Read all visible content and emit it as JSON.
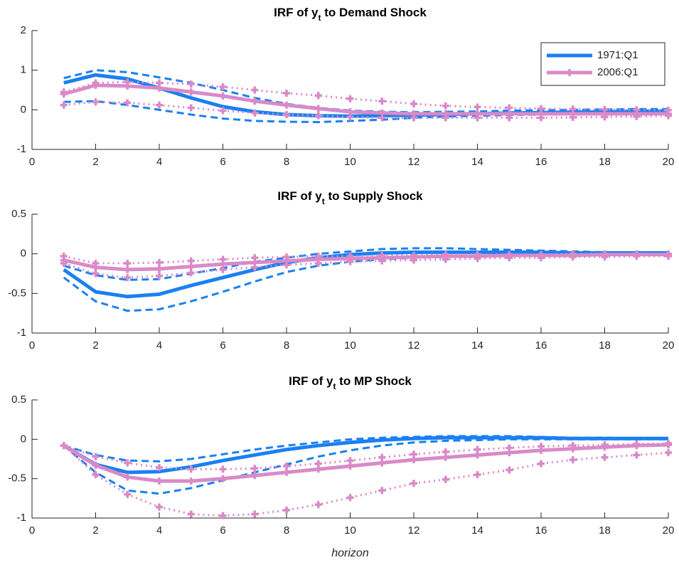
{
  "chart_data": [
    {
      "type": "line",
      "title": [
        "IRF of y",
        "t",
        " to Demand Shock"
      ],
      "x": [
        1,
        2,
        3,
        4,
        5,
        6,
        7,
        8,
        9,
        10,
        11,
        12,
        13,
        14,
        15,
        16,
        17,
        18,
        19,
        20
      ],
      "xlim": [
        0,
        20
      ],
      "xticks": [
        0,
        2,
        4,
        6,
        8,
        10,
        12,
        14,
        16,
        18,
        20
      ],
      "ylim": [
        -1,
        2
      ],
      "yticks": [
        -1,
        0,
        1,
        2
      ],
      "legend": "northeast",
      "series": [
        {
          "name": "1971:Q1",
          "color": "#1a80f2",
          "band_style": "dashed",
          "marker": "none",
          "values": [
            0.68,
            0.88,
            0.78,
            0.55,
            0.3,
            0.08,
            -0.05,
            -0.12,
            -0.15,
            -0.16,
            -0.15,
            -0.13,
            -0.12,
            -0.1,
            -0.08,
            -0.07,
            -0.06,
            -0.05,
            -0.04,
            -0.03
          ],
          "upper": [
            0.8,
            1.0,
            0.95,
            0.82,
            0.68,
            0.5,
            0.3,
            0.15,
            0.05,
            -0.02,
            -0.05,
            -0.06,
            -0.05,
            -0.04,
            -0.02,
            -0.01,
            0,
            0.01,
            0.02,
            0.02
          ],
          "lower": [
            0.2,
            0.22,
            0.12,
            0,
            -0.12,
            -0.22,
            -0.28,
            -0.3,
            -0.31,
            -0.28,
            -0.25,
            -0.2,
            -0.17,
            -0.15,
            -0.13,
            -0.12,
            -0.11,
            -0.1,
            -0.09,
            -0.08
          ]
        },
        {
          "name": "2006:Q1",
          "color": "#d98ac8",
          "band_style": "dotted",
          "marker": "+",
          "values": [
            0.4,
            0.62,
            0.6,
            0.55,
            0.45,
            0.35,
            0.22,
            0.12,
            0.03,
            -0.05,
            -0.08,
            -0.1,
            -0.1,
            -0.1,
            -0.1,
            -0.1,
            -0.1,
            -0.1,
            -0.1,
            -0.1
          ],
          "upper": [
            0.45,
            0.68,
            0.7,
            0.68,
            0.65,
            0.58,
            0.5,
            0.42,
            0.36,
            0.28,
            0.22,
            0.15,
            0.1,
            0.07,
            0.05,
            0.03,
            0.02,
            0.01,
            0,
            -0.01
          ],
          "lower": [
            0.12,
            0.2,
            0.18,
            0.12,
            0.05,
            -0.02,
            -0.08,
            -0.12,
            -0.15,
            -0.18,
            -0.2,
            -0.2,
            -0.2,
            -0.2,
            -0.2,
            -0.2,
            -0.19,
            -0.18,
            -0.17,
            -0.15
          ]
        }
      ]
    },
    {
      "type": "line",
      "title": [
        "IRF of y",
        "t",
        " to Supply Shock"
      ],
      "x": [
        1,
        2,
        3,
        4,
        5,
        6,
        7,
        8,
        9,
        10,
        11,
        12,
        13,
        14,
        15,
        16,
        17,
        18,
        19,
        20
      ],
      "xlim": [
        0,
        20
      ],
      "xticks": [
        0,
        2,
        4,
        6,
        8,
        10,
        12,
        14,
        16,
        18,
        20
      ],
      "ylim": [
        -1,
        0.5
      ],
      "yticks": [
        -1,
        -0.5,
        0,
        0.5
      ],
      "series": [
        {
          "color": "#1a80f2",
          "band_style": "dashed",
          "marker": "none",
          "values": [
            -0.2,
            -0.48,
            -0.54,
            -0.51,
            -0.4,
            -0.3,
            -0.2,
            -0.11,
            -0.05,
            -0.01,
            0.01,
            0.02,
            0.02,
            0.02,
            0.02,
            0.02,
            0.01,
            0.01,
            0.01,
            0.01
          ],
          "upper": [
            -0.15,
            -0.27,
            -0.33,
            -0.32,
            -0.25,
            -0.18,
            -0.1,
            -0.05,
            0,
            0.03,
            0.06,
            0.07,
            0.07,
            0.06,
            0.05,
            0.04,
            0.03,
            0.02,
            0.02,
            0.01
          ],
          "lower": [
            -0.3,
            -0.6,
            -0.72,
            -0.7,
            -0.6,
            -0.48,
            -0.35,
            -0.23,
            -0.15,
            -0.1,
            -0.07,
            -0.05,
            -0.04,
            -0.03,
            -0.02,
            -0.02,
            -0.01,
            -0.01,
            -0.01,
            -0.01
          ]
        },
        {
          "color": "#d98ac8",
          "band_style": "dotted",
          "marker": "+",
          "values": [
            -0.08,
            -0.17,
            -0.2,
            -0.19,
            -0.16,
            -0.13,
            -0.11,
            -0.09,
            -0.07,
            -0.06,
            -0.05,
            -0.04,
            -0.03,
            -0.03,
            -0.02,
            -0.02,
            -0.02,
            -0.01,
            -0.01,
            -0.01
          ],
          "upper": [
            -0.03,
            -0.12,
            -0.12,
            -0.11,
            -0.09,
            -0.07,
            -0.05,
            -0.04,
            -0.03,
            -0.03,
            -0.02,
            -0.02,
            -0.01,
            -0.01,
            -0.01,
            -0.01,
            0,
            0,
            0,
            0
          ],
          "lower": [
            -0.12,
            -0.25,
            -0.3,
            -0.28,
            -0.24,
            -0.2,
            -0.17,
            -0.14,
            -0.12,
            -0.1,
            -0.09,
            -0.08,
            -0.07,
            -0.06,
            -0.05,
            -0.05,
            -0.04,
            -0.04,
            -0.03,
            -0.03
          ]
        }
      ]
    },
    {
      "type": "line",
      "title": [
        "IRF of y",
        "t",
        " to MP Shock"
      ],
      "xlabel": "horizon",
      "x": [
        1,
        2,
        3,
        4,
        5,
        6,
        7,
        8,
        9,
        10,
        11,
        12,
        13,
        14,
        15,
        16,
        17,
        18,
        19,
        20
      ],
      "xlim": [
        0,
        20
      ],
      "xticks": [
        0,
        2,
        4,
        6,
        8,
        10,
        12,
        14,
        16,
        18,
        20
      ],
      "ylim": [
        -1,
        0.5
      ],
      "yticks": [
        -1,
        -0.5,
        0,
        0.5
      ],
      "series": [
        {
          "color": "#1a80f2",
          "band_style": "dashed",
          "marker": "none",
          "values": [
            -0.08,
            -0.32,
            -0.42,
            -0.41,
            -0.35,
            -0.27,
            -0.2,
            -0.13,
            -0.08,
            -0.04,
            -0.01,
            0.01,
            0.02,
            0.02,
            0.02,
            0.02,
            0.01,
            0.01,
            0.01,
            0.01
          ],
          "upper": [
            -0.08,
            -0.2,
            -0.27,
            -0.28,
            -0.25,
            -0.19,
            -0.13,
            -0.08,
            -0.04,
            0,
            0.02,
            0.03,
            0.04,
            0.04,
            0.04,
            0.03,
            0.02,
            0.02,
            0.01,
            0.01
          ],
          "lower": [
            -0.08,
            -0.42,
            -0.65,
            -0.69,
            -0.62,
            -0.52,
            -0.42,
            -0.32,
            -0.22,
            -0.14,
            -0.08,
            -0.04,
            -0.02,
            -0.01,
            0,
            0,
            0,
            0,
            0,
            0
          ]
        },
        {
          "color": "#d98ac8",
          "band_style": "dotted",
          "marker": "+",
          "values": [
            -0.08,
            -0.33,
            -0.48,
            -0.53,
            -0.53,
            -0.5,
            -0.46,
            -0.42,
            -0.38,
            -0.34,
            -0.3,
            -0.26,
            -0.23,
            -0.2,
            -0.17,
            -0.14,
            -0.12,
            -0.1,
            -0.08,
            -0.07
          ],
          "upper": [
            -0.08,
            -0.22,
            -0.3,
            -0.36,
            -0.38,
            -0.38,
            -0.37,
            -0.34,
            -0.31,
            -0.27,
            -0.23,
            -0.19,
            -0.16,
            -0.13,
            -0.11,
            -0.09,
            -0.08,
            -0.07,
            -0.06,
            -0.05
          ],
          "lower": [
            -0.08,
            -0.45,
            -0.7,
            -0.86,
            -0.95,
            -0.97,
            -0.95,
            -0.9,
            -0.83,
            -0.74,
            -0.65,
            -0.56,
            -0.51,
            -0.45,
            -0.39,
            -0.31,
            -0.26,
            -0.23,
            -0.2,
            -0.17
          ]
        }
      ]
    }
  ]
}
